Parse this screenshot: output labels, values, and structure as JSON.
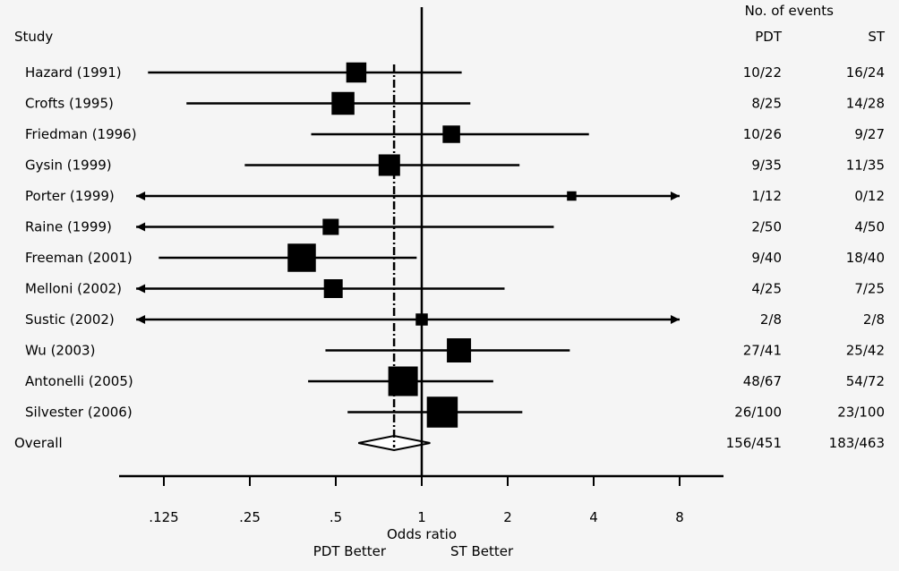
{
  "chart_data": {
    "type": "forest",
    "header": {
      "study": "Study",
      "events_title": "No. of events",
      "col_pdt": "PDT",
      "col_st": "ST"
    },
    "xlabel": "Odds ratio",
    "x_scale": "log2",
    "xlim": [
      0.1,
      10
    ],
    "ticks": [
      {
        "value": 0.125,
        "label": ".125"
      },
      {
        "value": 0.25,
        "label": ".25"
      },
      {
        "value": 0.5,
        "label": ".5"
      },
      {
        "value": 1,
        "label": "1"
      },
      {
        "value": 2,
        "label": "2"
      },
      {
        "value": 4,
        "label": "4"
      },
      {
        "value": 8,
        "label": "8"
      }
    ],
    "favours_left": "PDT Better",
    "favours_right": "ST Better",
    "reference_line": 1,
    "overall_line": 0.8,
    "studies": [
      {
        "name": "Hazard (1991)",
        "or": 0.59,
        "lo": 0.11,
        "hi": 1.38,
        "weight": 0.55,
        "arrow_lo": false,
        "arrow_hi": false,
        "pdt": "10/22",
        "st": "16/24"
      },
      {
        "name": "Crofts (1995)",
        "or": 0.53,
        "lo": 0.15,
        "hi": 1.48,
        "weight": 0.65,
        "arrow_lo": false,
        "arrow_hi": false,
        "pdt": "8/25",
        "st": "14/28"
      },
      {
        "name": "Friedman (1996)",
        "or": 1.27,
        "lo": 0.41,
        "hi": 3.85,
        "weight": 0.45,
        "arrow_lo": false,
        "arrow_hi": false,
        "pdt": "10/26",
        "st": "9/27"
      },
      {
        "name": "Gysin (1999)",
        "or": 0.77,
        "lo": 0.24,
        "hi": 2.2,
        "weight": 0.6,
        "arrow_lo": false,
        "arrow_hi": false,
        "pdt": "9/35",
        "st": "11/35"
      },
      {
        "name": "Porter (1999)",
        "or": 3.35,
        "lo": 0.1,
        "hi": 8.0,
        "weight": 0.15,
        "arrow_lo": true,
        "arrow_hi": true,
        "pdt": "1/12",
        "st": "0/12"
      },
      {
        "name": "Raine (1999)",
        "or": 0.48,
        "lo": 0.1,
        "hi": 2.9,
        "weight": 0.4,
        "arrow_lo": true,
        "arrow_hi": false,
        "pdt": "2/50",
        "st": "4/50"
      },
      {
        "name": "Freeman (2001)",
        "or": 0.38,
        "lo": 0.12,
        "hi": 0.96,
        "weight": 0.85,
        "arrow_lo": false,
        "arrow_hi": false,
        "pdt": "9/40",
        "st": "18/40"
      },
      {
        "name": "Melloni (2002)",
        "or": 0.49,
        "lo": 0.1,
        "hi": 1.95,
        "weight": 0.5,
        "arrow_lo": true,
        "arrow_hi": false,
        "pdt": "4/25",
        "st": "7/25"
      },
      {
        "name": "Sustic (2002)",
        "or": 1.0,
        "lo": 0.1,
        "hi": 8.0,
        "weight": 0.25,
        "arrow_lo": true,
        "arrow_hi": true,
        "pdt": "2/8",
        "st": "2/8"
      },
      {
        "name": "Wu (2003)",
        "or": 1.35,
        "lo": 0.46,
        "hi": 3.3,
        "weight": 0.7,
        "arrow_lo": false,
        "arrow_hi": false,
        "pdt": "27/41",
        "st": "25/42"
      },
      {
        "name": "Antonelli (2005)",
        "or": 0.86,
        "lo": 0.4,
        "hi": 1.78,
        "weight": 0.9,
        "arrow_lo": false,
        "arrow_hi": false,
        "pdt": "48/67",
        "st": "54/72"
      },
      {
        "name": "Silvester (2006)",
        "or": 1.18,
        "lo": 0.55,
        "hi": 2.25,
        "weight": 0.95,
        "arrow_lo": false,
        "arrow_hi": false,
        "pdt": "26/100",
        "st": "23/100"
      }
    ],
    "overall": {
      "name": "Overall",
      "or": 0.8,
      "lo": 0.6,
      "hi": 1.07,
      "pdt": "156/451",
      "st": "183/463"
    }
  }
}
